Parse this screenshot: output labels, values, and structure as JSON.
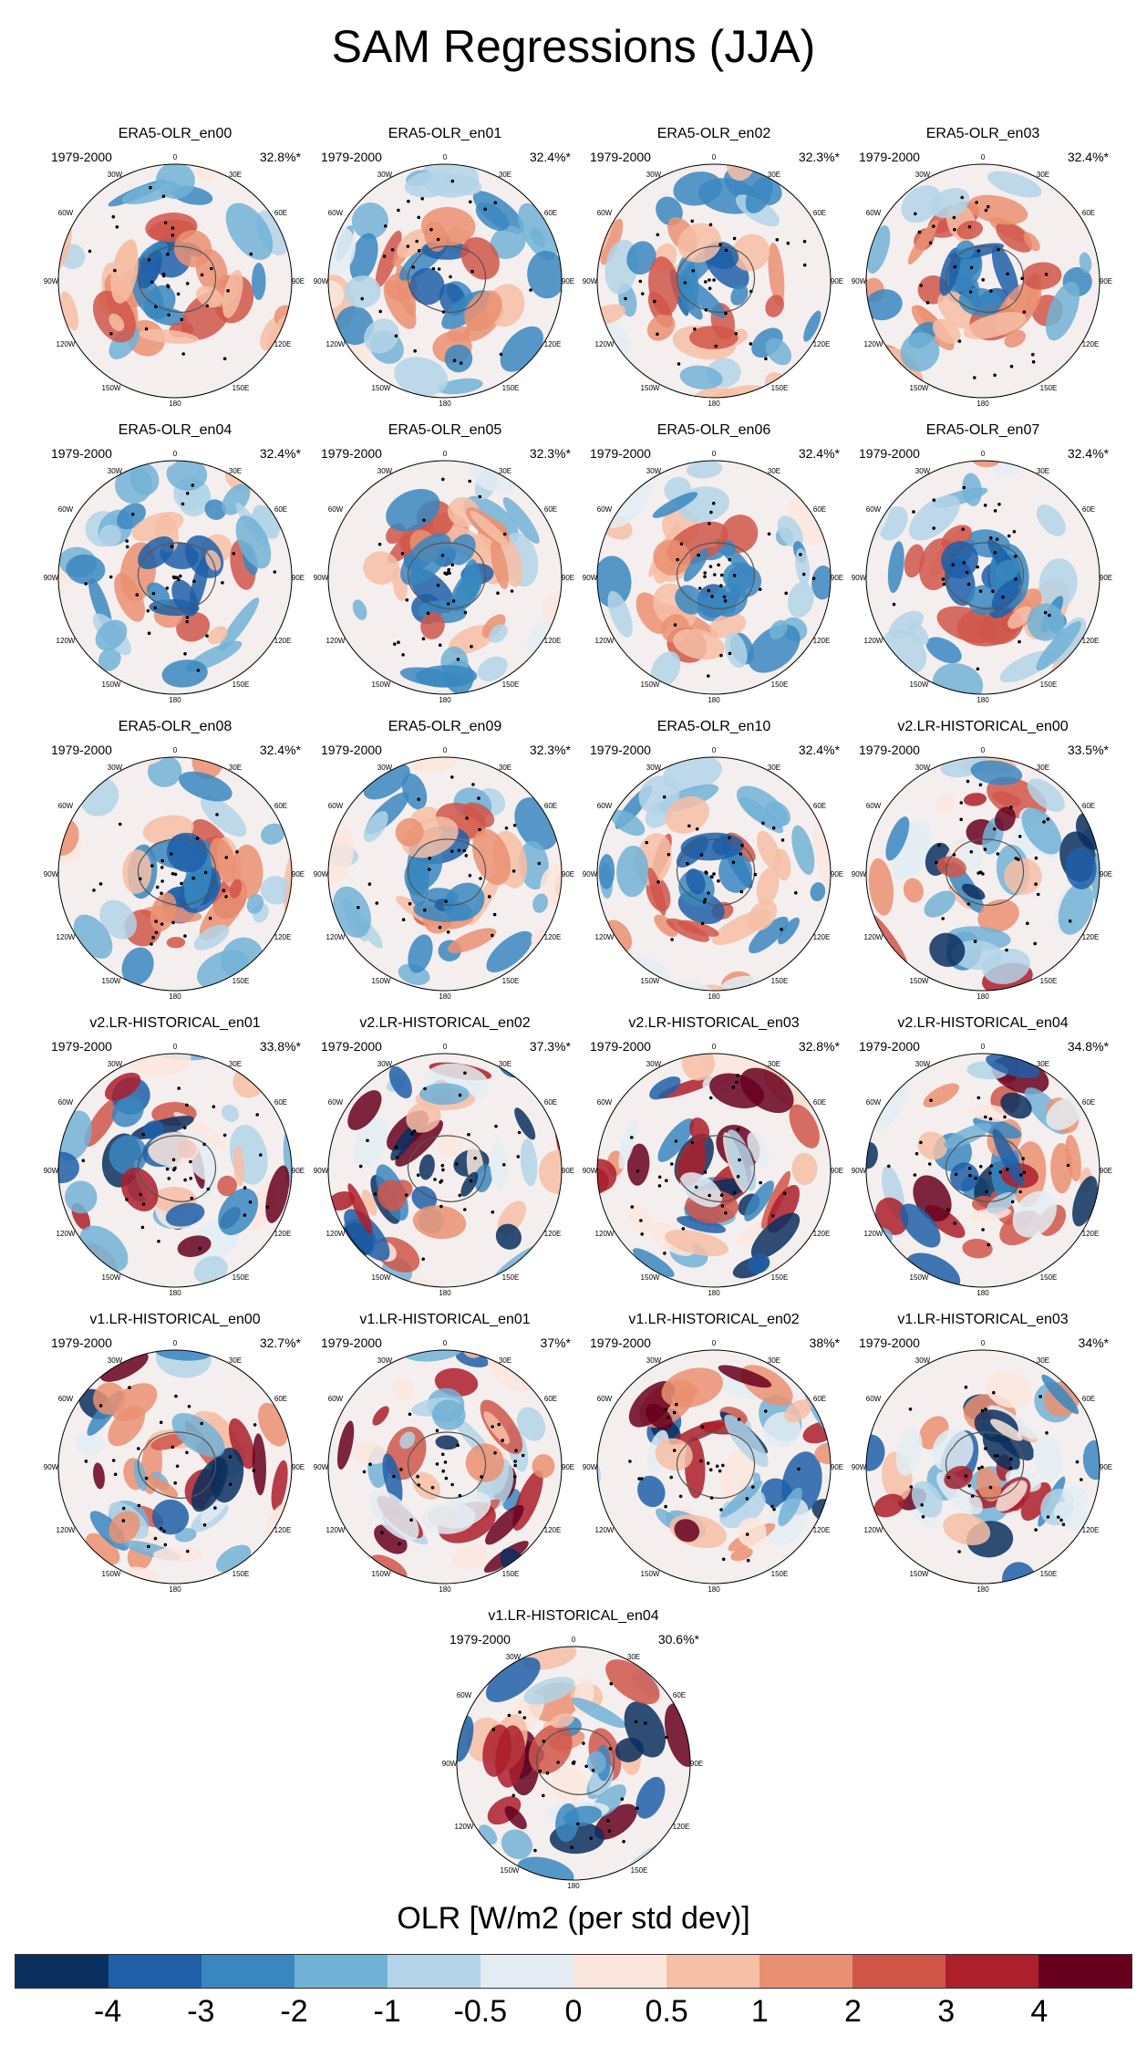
{
  "title": "SAM Regressions (JJA)",
  "period": "1979-2000",
  "lon_labels": {
    "top": "0",
    "nne": "30E",
    "ene": "60E",
    "east": "90E",
    "ese": "120E",
    "sse": "150E",
    "bottom": "180",
    "ssw": "150W",
    "wsw": "120W",
    "west": "90W",
    "wnw": "60W",
    "nnw": "30W"
  },
  "panels": [
    {
      "title": "ERA5-OLR_en00",
      "pct": "32.8%*"
    },
    {
      "title": "ERA5-OLR_en01",
      "pct": "32.4%*"
    },
    {
      "title": "ERA5-OLR_en02",
      "pct": "32.3%*"
    },
    {
      "title": "ERA5-OLR_en03",
      "pct": "32.4%*"
    },
    {
      "title": "ERA5-OLR_en04",
      "pct": "32.4%*"
    },
    {
      "title": "ERA5-OLR_en05",
      "pct": "32.3%*"
    },
    {
      "title": "ERA5-OLR_en06",
      "pct": "32.4%*"
    },
    {
      "title": "ERA5-OLR_en07",
      "pct": "32.4%*"
    },
    {
      "title": "ERA5-OLR_en08",
      "pct": "32.4%*"
    },
    {
      "title": "ERA5-OLR_en09",
      "pct": "32.3%*"
    },
    {
      "title": "ERA5-OLR_en10",
      "pct": "32.4%*"
    },
    {
      "title": "v2.LR-HISTORICAL_en00",
      "pct": "33.5%*"
    },
    {
      "title": "v2.LR-HISTORICAL_en01",
      "pct": "33.8%*"
    },
    {
      "title": "v2.LR-HISTORICAL_en02",
      "pct": "37.3%*"
    },
    {
      "title": "v2.LR-HISTORICAL_en03",
      "pct": "32.8%*"
    },
    {
      "title": "v2.LR-HISTORICAL_en04",
      "pct": "34.8%*"
    },
    {
      "title": "v1.LR-HISTORICAL_en00",
      "pct": "32.7%*"
    },
    {
      "title": "v1.LR-HISTORICAL_en01",
      "pct": "37%*"
    },
    {
      "title": "v1.LR-HISTORICAL_en02",
      "pct": "38%*"
    },
    {
      "title": "v1.LR-HISTORICAL_en03",
      "pct": "34%*"
    },
    {
      "title": "v1.LR-HISTORICAL_en04",
      "pct": "30.6%*"
    }
  ],
  "colorbar": {
    "title": "OLR [W/m2 (per std dev)]",
    "colors": [
      "#0a2f5e",
      "#1f5fa8",
      "#3a87c0",
      "#72b1d6",
      "#b3d4e8",
      "#e3ecf3",
      "#fbe6dd",
      "#f6bea6",
      "#ea9072",
      "#d0564a",
      "#ac1f2b",
      "#67001f"
    ],
    "ticks": [
      "-4",
      "-3",
      "-2",
      "-1",
      "-0.5",
      "0",
      "0.5",
      "1",
      "2",
      "3",
      "4"
    ]
  }
}
